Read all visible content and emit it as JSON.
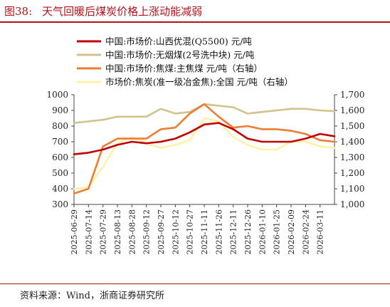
{
  "header": {
    "figure_number": "图38:",
    "title": "天气回暖后煤炭价格上涨动能减弱"
  },
  "footer": {
    "source": "资料来源：Wind，浙商证券研究所"
  },
  "colors": {
    "accent": "#b4121b"
  },
  "chart_data": {
    "type": "line",
    "x": [
      "2025-06-29",
      "2025-07-14",
      "2025-07-29",
      "2025-08-13",
      "2025-08-28",
      "2025-09-12",
      "2025-09-27",
      "2025-10-12",
      "2025-10-27",
      "2025-11-11",
      "2025-11-26",
      "2025-12-11",
      "2025-12-26",
      "2026-01-10",
      "2026-01-25",
      "2026-02-09",
      "2026-02-24",
      "2026-03-11",
      "2026-03-18"
    ],
    "xticks": [
      "2025-06-29",
      "2025-07-14",
      "2025-07-29",
      "2025-08-13",
      "2025-08-28",
      "2025-09-12",
      "2025-09-27",
      "2025-10-12",
      "2025-10-27",
      "2025-11-11",
      "2025-11-26",
      "2025-12-11",
      "2025-12-26",
      "2026-01-10",
      "2026-01-25",
      "2026-02-09",
      "2026-02-24",
      "2026-03-11"
    ],
    "y_left": {
      "min": 300,
      "max": 1000,
      "step": 100,
      "ticks": [
        "300",
        "400",
        "500",
        "600",
        "700",
        "800",
        "900",
        "1000"
      ]
    },
    "y_right": {
      "min": 1000,
      "max": 1700,
      "step": 100,
      "ticks": [
        "1,000",
        "1,100",
        "1,200",
        "1,300",
        "1,400",
        "1,500",
        "1,600",
        "1,700"
      ]
    },
    "series": [
      {
        "name": "中国:市场价:山西优混(Q5500) 元/吨",
        "axis": "left",
        "color": "#c00000",
        "values": [
          620,
          630,
          650,
          680,
          700,
          690,
          700,
          720,
          760,
          810,
          820,
          780,
          720,
          700,
          700,
          700,
          720,
          750,
          735
        ]
      },
      {
        "name": "中国:市场价:无烟煤(2号洗中块) 元/吨",
        "axis": "left",
        "color": "#d2c28c",
        "values": [
          820,
          830,
          840,
          860,
          860,
          860,
          910,
          880,
          890,
          940,
          930,
          920,
          880,
          890,
          900,
          910,
          910,
          900,
          895
        ]
      },
      {
        "name": "中国:市场价:焦煤:主焦煤 元/吨（右轴）",
        "axis": "right",
        "color": "#ed7d31",
        "values": [
          1070,
          1100,
          1370,
          1420,
          1420,
          1420,
          1480,
          1490,
          1580,
          1640,
          1560,
          1490,
          1500,
          1480,
          1480,
          1470,
          1450,
          1410,
          1400
        ]
      },
      {
        "name": "市场价:焦炭(准一级冶金焦):全国 元/吨（右轴）",
        "axis": "right",
        "color": "#fff2a8",
        "values": [
          1100,
          1110,
          1240,
          1390,
          1430,
          1390,
          1360,
          1380,
          1410,
          1550,
          1530,
          1430,
          1380,
          1350,
          1350,
          1400,
          1400,
          1370,
          1360
        ]
      }
    ]
  }
}
